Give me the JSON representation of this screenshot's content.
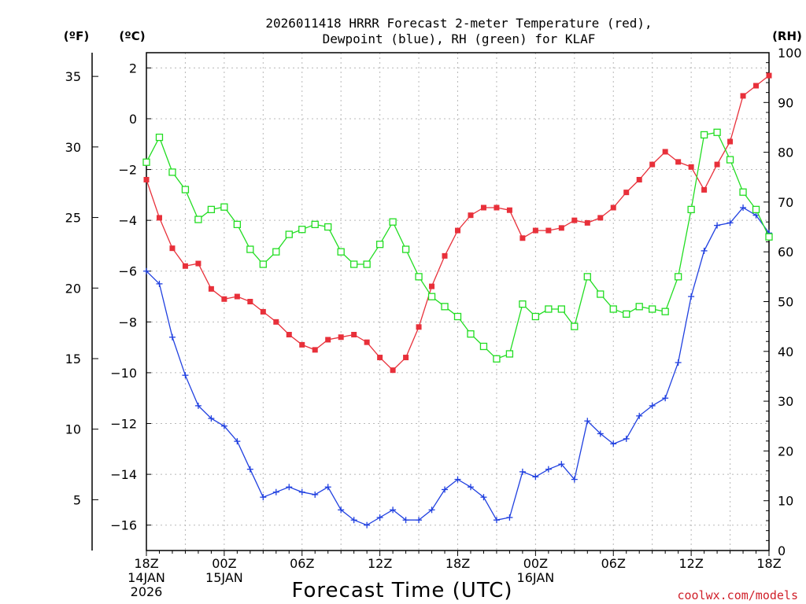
{
  "chart_data": {
    "type": "line",
    "title": [
      "2026011418 HRRR Forecast 2-meter Temperature (red),",
      "Dewpoint (blue), RH (green) for KLAF"
    ],
    "units": {
      "fahrenheit": "(ºF)",
      "celsius": "(ºC)",
      "rh": "(RH)"
    },
    "xlabel": "Forecast Time (UTC)",
    "credit": "coolwx.com/models",
    "x_range_hours": [
      0,
      48
    ],
    "x_ticks": [
      {
        "hour": 0,
        "lines": [
          "18Z",
          "14JAN",
          "2026"
        ]
      },
      {
        "hour": 6,
        "lines": [
          "00Z",
          "15JAN"
        ]
      },
      {
        "hour": 12,
        "lines": [
          "06Z"
        ]
      },
      {
        "hour": 18,
        "lines": [
          "12Z"
        ]
      },
      {
        "hour": 24,
        "lines": [
          "18Z"
        ]
      },
      {
        "hour": 30,
        "lines": [
          "00Z",
          "16JAN"
        ]
      },
      {
        "hour": 36,
        "lines": [
          "06Z"
        ]
      },
      {
        "hour": 42,
        "lines": [
          "12Z"
        ]
      },
      {
        "hour": 48,
        "lines": [
          "18Z"
        ]
      }
    ],
    "celsius_axis": {
      "range": [
        -17,
        2.6
      ],
      "ticks": [
        "2",
        "0",
        "−2",
        "−4",
        "−6",
        "−8",
        "−10",
        "−12",
        "−14",
        "−16"
      ],
      "tick_values": [
        2,
        0,
        -2,
        -4,
        -6,
        -8,
        -10,
        -12,
        -14,
        -16
      ]
    },
    "fahrenheit_axis": {
      "ticks": [
        "35",
        "30",
        "25",
        "20",
        "15",
        "10",
        "5"
      ],
      "tick_values": [
        35,
        30,
        25,
        20,
        15,
        10,
        5
      ]
    },
    "rh_axis": {
      "range": [
        0,
        100
      ],
      "ticks": [
        "100",
        "90",
        "80",
        "70",
        "60",
        "50",
        "40",
        "30",
        "20",
        "10",
        "0"
      ],
      "tick_values": [
        100,
        90,
        80,
        70,
        60,
        50,
        40,
        30,
        20,
        10,
        0
      ]
    },
    "grid": true,
    "series": [
      {
        "name": "Temperature (red)",
        "axis": "celsius",
        "color": "#e8303a",
        "marker": "filled-square",
        "values": [
          -2.4,
          -3.9,
          -5.1,
          -5.8,
          -5.7,
          -6.7,
          -7.1,
          -7.0,
          -7.2,
          -7.6,
          -8.0,
          -8.5,
          -8.9,
          -9.1,
          -8.7,
          -8.6,
          -8.5,
          -8.8,
          -9.4,
          -9.9,
          -9.4,
          -8.2,
          -6.6,
          -5.4,
          -4.4,
          -3.8,
          -3.5,
          -3.5,
          -3.6,
          -4.7,
          -4.4,
          -4.4,
          -4.3,
          -4.0,
          -4.1,
          -3.9,
          -3.5,
          -2.9,
          -2.4,
          -1.8,
          -1.3,
          -1.7,
          -1.9,
          -2.8,
          -1.8,
          -0.9,
          0.9,
          1.3,
          1.7
        ]
      },
      {
        "name": "Dewpoint (blue)",
        "axis": "celsius",
        "color": "#2040e0",
        "marker": "plus",
        "values": [
          -6.0,
          -6.5,
          -8.6,
          -10.1,
          -11.3,
          -11.8,
          -12.1,
          -12.7,
          -13.8,
          -14.9,
          -14.7,
          -14.5,
          -14.7,
          -14.8,
          -14.5,
          -15.4,
          -15.8,
          -16.0,
          -15.7,
          -15.4,
          -15.8,
          -15.8,
          -15.4,
          -14.6,
          -14.2,
          -14.5,
          -14.9,
          -15.8,
          -15.7,
          -13.9,
          -14.1,
          -13.8,
          -13.6,
          -14.2,
          -11.9,
          -12.4,
          -12.8,
          -12.6,
          -11.7,
          -11.3,
          -11.0,
          -9.6,
          -7.0,
          -5.2,
          -4.2,
          -4.1,
          -3.5,
          -3.8,
          -4.5
        ]
      },
      {
        "name": "RH (green)",
        "axis": "rh",
        "color": "#22dd22",
        "marker": "open-square",
        "values": [
          78,
          83,
          76,
          72.5,
          66.5,
          68.5,
          69,
          65.5,
          60.5,
          57.5,
          60,
          63.5,
          64.5,
          65.5,
          65,
          60,
          57.5,
          57.5,
          61.5,
          66,
          60.5,
          55,
          51,
          49,
          47,
          43.5,
          41,
          38.5,
          39.5,
          49.5,
          47,
          48.5,
          48.5,
          45,
          55,
          51.5,
          48.5,
          47.5,
          49,
          48.5,
          48,
          55,
          68.5,
          83.5,
          84,
          78.5,
          72,
          68.5,
          63
        ]
      }
    ]
  }
}
